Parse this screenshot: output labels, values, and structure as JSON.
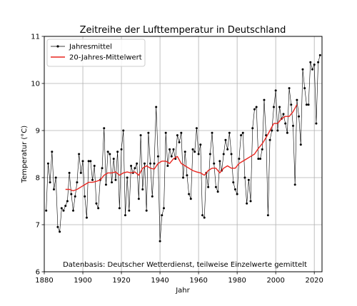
{
  "chart_data": {
    "type": "line",
    "title": "Zeitreihe der Lufttemperatur in Deutschland",
    "xlabel": "Jahr",
    "ylabel": "Temperatur (°C)",
    "xlim": [
      1880,
      2024
    ],
    "ylim": [
      6,
      11
    ],
    "xticks": [
      1880,
      1900,
      1920,
      1940,
      1960,
      1980,
      2000,
      2020
    ],
    "yticks": [
      6,
      7,
      8,
      9,
      10,
      11
    ],
    "grid": true,
    "legend_position": "top-left",
    "annotation": "Datenbasis: Deutscher Wetterdienst, teilweise Einzelwerte gemittelt",
    "series": [
      {
        "name": "Jahresmittel",
        "color": "#000000",
        "style": "thin line with dot markers",
        "x": [
          1881,
          1882,
          1883,
          1884,
          1885,
          1886,
          1887,
          1888,
          1889,
          1890,
          1891,
          1892,
          1893,
          1894,
          1895,
          1896,
          1897,
          1898,
          1899,
          1900,
          1901,
          1902,
          1903,
          1904,
          1905,
          1906,
          1907,
          1908,
          1909,
          1910,
          1911,
          1912,
          1913,
          1914,
          1915,
          1916,
          1917,
          1918,
          1919,
          1920,
          1921,
          1922,
          1923,
          1924,
          1925,
          1926,
          1927,
          1928,
          1929,
          1930,
          1931,
          1932,
          1933,
          1934,
          1935,
          1936,
          1937,
          1938,
          1939,
          1940,
          1941,
          1942,
          1943,
          1944,
          1945,
          1946,
          1947,
          1948,
          1949,
          1950,
          1951,
          1952,
          1953,
          1954,
          1955,
          1956,
          1957,
          1958,
          1959,
          1960,
          1961,
          1962,
          1963,
          1964,
          1965,
          1966,
          1967,
          1968,
          1969,
          1970,
          1971,
          1972,
          1973,
          1974,
          1975,
          1976,
          1977,
          1978,
          1979,
          1980,
          1981,
          1982,
          1983,
          1984,
          1985,
          1986,
          1987,
          1988,
          1989,
          1990,
          1991,
          1992,
          1993,
          1994,
          1995,
          1996,
          1997,
          1998,
          1999,
          2000,
          2001,
          2002,
          2003,
          2004,
          2005,
          2006,
          2007,
          2008,
          2009,
          2010,
          2011,
          2012,
          2013,
          2014,
          2015,
          2016,
          2017,
          2018,
          2019,
          2020,
          2021,
          2022,
          2023
        ],
        "y": [
          7.3,
          8.3,
          7.9,
          8.55,
          7.75,
          8.0,
          6.95,
          6.85,
          7.35,
          7.3,
          7.4,
          7.5,
          8.1,
          7.65,
          7.3,
          7.6,
          7.9,
          8.5,
          8.1,
          8.35,
          7.6,
          7.15,
          8.35,
          8.35,
          7.95,
          8.25,
          7.45,
          7.35,
          7.95,
          8.2,
          9.05,
          7.85,
          8.55,
          8.5,
          7.9,
          8.4,
          7.95,
          8.55,
          7.35,
          8.6,
          9.0,
          7.2,
          8.0,
          7.3,
          8.25,
          8.1,
          8.2,
          8.3,
          7.55,
          8.9,
          7.75,
          8.3,
          7.3,
          8.95,
          8.3,
          7.6,
          8.3,
          9.5,
          8.45,
          6.65,
          7.2,
          7.35,
          8.95,
          8.25,
          8.6,
          8.45,
          8.6,
          8.4,
          8.9,
          8.75,
          8.95,
          8.0,
          8.55,
          8.05,
          7.65,
          7.55,
          8.6,
          8.55,
          9.05,
          8.5,
          8.7,
          7.2,
          7.15,
          8.1,
          7.8,
          8.5,
          8.95,
          8.3,
          7.8,
          7.7,
          8.35,
          8.15,
          8.5,
          8.8,
          8.6,
          8.95,
          8.5,
          7.9,
          7.75,
          7.65,
          8.4,
          8.9,
          8.95,
          8.0,
          7.45,
          7.95,
          7.5,
          9.05,
          9.45,
          9.5,
          8.4,
          8.4,
          8.6,
          9.65,
          8.9,
          7.2,
          8.8,
          9.0,
          9.5,
          9.85,
          9.0,
          9.5,
          9.25,
          9.35,
          9.15,
          8.95,
          9.9,
          9.55,
          9.1,
          7.85,
          9.65,
          9.3,
          8.7,
          10.3,
          9.9,
          9.55,
          9.55,
          10.45,
          10.3,
          10.4,
          9.15,
          10.45,
          10.6
        ]
      },
      {
        "name": "20-Jahres-Mittelwert",
        "color": "#e8251f",
        "style": "solid line",
        "x": [
          1891,
          1893,
          1895,
          1897,
          1899,
          1901,
          1903,
          1905,
          1907,
          1909,
          1911,
          1913,
          1915,
          1917,
          1919,
          1921,
          1923,
          1925,
          1927,
          1929,
          1931,
          1933,
          1935,
          1937,
          1939,
          1941,
          1943,
          1945,
          1947,
          1949,
          1951,
          1953,
          1955,
          1957,
          1959,
          1961,
          1963,
          1965,
          1967,
          1969,
          1971,
          1973,
          1975,
          1977,
          1979,
          1981,
          1983,
          1985,
          1987,
          1989,
          1991,
          1993,
          1995,
          1997,
          1999,
          2001,
          2003,
          2005,
          2007,
          2009,
          2011
        ],
        "y": [
          7.75,
          7.75,
          7.72,
          7.75,
          7.8,
          7.85,
          7.9,
          7.9,
          7.92,
          7.95,
          8.05,
          8.1,
          8.1,
          8.12,
          8.05,
          8.1,
          8.12,
          8.1,
          8.12,
          8.05,
          8.2,
          8.25,
          8.2,
          8.18,
          8.3,
          8.35,
          8.35,
          8.3,
          8.4,
          8.45,
          8.3,
          8.25,
          8.2,
          8.15,
          8.12,
          8.1,
          8.05,
          8.15,
          8.2,
          8.2,
          8.1,
          8.2,
          8.25,
          8.2,
          8.2,
          8.3,
          8.35,
          8.4,
          8.45,
          8.5,
          8.62,
          8.72,
          8.85,
          9.0,
          9.15,
          9.15,
          9.25,
          9.3,
          9.3,
          9.4,
          9.55
        ]
      }
    ]
  }
}
